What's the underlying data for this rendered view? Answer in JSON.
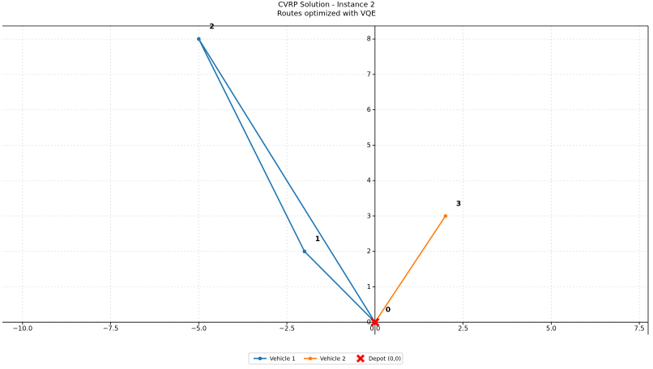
{
  "chart_data": {
    "type": "line",
    "title": "CVRP Solution - Instance 2",
    "subtitle": "Routes optimized with VQE",
    "series": [
      {
        "name": "Vehicle 1",
        "color": "#1f77b4",
        "x": [
          0,
          -2,
          -5,
          0
        ],
        "values": [
          0,
          2,
          8,
          0
        ]
      },
      {
        "name": "Vehicle 2",
        "color": "#ff7f0e",
        "x": [
          0,
          2,
          0
        ],
        "values": [
          0,
          3,
          0
        ]
      }
    ],
    "depot": {
      "name": "Depot (0,0)",
      "color": "#ff0000",
      "x": 0,
      "y": 0
    },
    "annotations": [
      {
        "text": "0",
        "x": 0,
        "y": 0
      },
      {
        "text": "1",
        "x": -2,
        "y": 2
      },
      {
        "text": "2",
        "x": -5,
        "y": 8
      },
      {
        "text": "3",
        "x": 2,
        "y": 3
      }
    ],
    "xlim": [
      -10.57,
      7.75
    ],
    "ylim": [
      -0.35,
      8.37
    ],
    "xticks": [
      {
        "value": -10,
        "label": "−10.0"
      },
      {
        "value": -7.5,
        "label": "−7.5"
      },
      {
        "value": -5,
        "label": "−5.0"
      },
      {
        "value": -2.5,
        "label": "−2.5"
      },
      {
        "value": 0,
        "label": "0.0"
      },
      {
        "value": 2.5,
        "label": "2.5"
      },
      {
        "value": 5,
        "label": "5.0"
      },
      {
        "value": 7.5,
        "label": "7.5"
      }
    ],
    "yticks": [
      0,
      1,
      2,
      3,
      4,
      5,
      6,
      7,
      8
    ],
    "grid": true,
    "legend": "bottom"
  }
}
